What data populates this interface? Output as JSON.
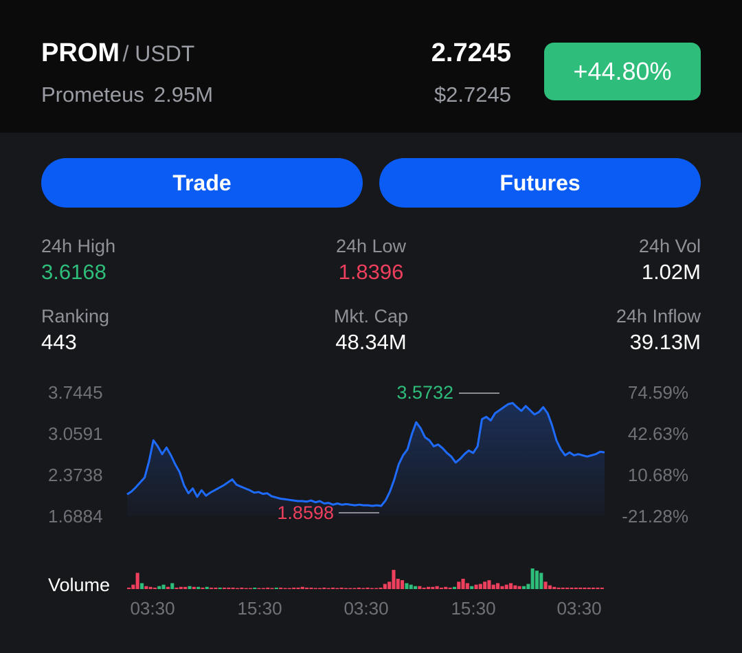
{
  "header": {
    "base": "PROM",
    "quote": "/ USDT",
    "name": "Prometeus",
    "market_cap_short": "2.95M",
    "price": "2.7245",
    "usd_price": "$2.7245",
    "change": "+44.80%"
  },
  "actions": {
    "trade": "Trade",
    "futures": "Futures"
  },
  "stats": {
    "high_label": "24h High",
    "high_value": "3.6168",
    "low_label": "24h Low",
    "low_value": "1.8396",
    "vol_label": "24h Vol",
    "vol_value": "1.02M",
    "rank_label": "Ranking",
    "rank_value": "443",
    "cap_label": "Mkt. Cap",
    "cap_value": "48.34M",
    "inflow_label": "24h Inflow",
    "inflow_value": "39.13M"
  },
  "chart_data": {
    "type": "line",
    "y_left_ticks": [
      "3.7445",
      "3.0591",
      "2.3738",
      "1.6884"
    ],
    "y_right_ticks": [
      "74.59%",
      "42.63%",
      "10.68%",
      "-21.28%"
    ],
    "x_ticks": [
      "03:30",
      "15:30",
      "03:30",
      "15:30",
      "03:30"
    ],
    "max_marker": "3.5732",
    "min_marker": "1.8598",
    "volume_label": "Volume",
    "y_range": [
      1.6884,
      3.7445
    ],
    "price_series": [
      2.05,
      2.1,
      2.17,
      2.25,
      2.33,
      2.6,
      2.95,
      2.85,
      2.72,
      2.83,
      2.7,
      2.55,
      2.42,
      2.2,
      2.07,
      2.15,
      2.01,
      2.12,
      2.03,
      2.08,
      2.12,
      2.16,
      2.2,
      2.25,
      2.3,
      2.21,
      2.18,
      2.15,
      2.12,
      2.08,
      2.09,
      2.06,
      2.07,
      2.02,
      2.0,
      1.98,
      1.97,
      1.96,
      1.95,
      1.94,
      1.94,
      1.93,
      1.95,
      1.92,
      1.94,
      1.9,
      1.91,
      1.88,
      1.9,
      1.88,
      1.89,
      1.88,
      1.87,
      1.88,
      1.87,
      1.87,
      1.86,
      1.87,
      1.86,
      1.95,
      2.1,
      2.3,
      2.55,
      2.7,
      2.8,
      3.05,
      3.25,
      3.15,
      3.0,
      2.95,
      2.85,
      2.88,
      2.82,
      2.74,
      2.68,
      2.58,
      2.64,
      2.72,
      2.78,
      2.74,
      2.85,
      3.3,
      3.34,
      3.28,
      3.4,
      3.45,
      3.5,
      3.55,
      3.57,
      3.5,
      3.44,
      3.52,
      3.45,
      3.38,
      3.42,
      3.5,
      3.4,
      3.2,
      2.95,
      2.8,
      2.7,
      2.75,
      2.7,
      2.72,
      2.7,
      2.68,
      2.7,
      2.72,
      2.76,
      2.75
    ],
    "volume_up": [
      0,
      0,
      0,
      1,
      0,
      0,
      0,
      1,
      2,
      0,
      1,
      0,
      0,
      0,
      1,
      0,
      1,
      0,
      1,
      0,
      0,
      1,
      0,
      0,
      0,
      0,
      0,
      0,
      0,
      1,
      0,
      0,
      0,
      0,
      1,
      0,
      0,
      0,
      0,
      0,
      0,
      0,
      0,
      0,
      0,
      0,
      0,
      0,
      0,
      0,
      0,
      0,
      0,
      0,
      0,
      0,
      0,
      0,
      0,
      0,
      0,
      0,
      0,
      0,
      1,
      1,
      1,
      0,
      0,
      0,
      0,
      0,
      0,
      0,
      0,
      1,
      0,
      0,
      0,
      1,
      0,
      0,
      0,
      0,
      0,
      0,
      0,
      0,
      0,
      0,
      0,
      1,
      1,
      1,
      1,
      1,
      0,
      0,
      0,
      0,
      0,
      0,
      0,
      0,
      0,
      0,
      0,
      0,
      0,
      0
    ],
    "volume_values": [
      2,
      6,
      22,
      8,
      4,
      3,
      2,
      4,
      6,
      3,
      8,
      2,
      3,
      3,
      4,
      3,
      3,
      2,
      3,
      2,
      2,
      2,
      2,
      2,
      2,
      1,
      2,
      1,
      1,
      2,
      1,
      1,
      2,
      1,
      2,
      2,
      1,
      1,
      2,
      2,
      3,
      2,
      2,
      1,
      1,
      2,
      1,
      2,
      1,
      2,
      1,
      1,
      1,
      2,
      1,
      2,
      1,
      1,
      2,
      7,
      10,
      26,
      14,
      12,
      8,
      6,
      4,
      4,
      2,
      3,
      3,
      4,
      2,
      3,
      2,
      3,
      10,
      14,
      8,
      4,
      6,
      7,
      10,
      12,
      6,
      8,
      4,
      6,
      8,
      5,
      4,
      4,
      7,
      28,
      25,
      22,
      10,
      5,
      3,
      2,
      2,
      2,
      2,
      2,
      2,
      2,
      2,
      2,
      2,
      2
    ]
  }
}
